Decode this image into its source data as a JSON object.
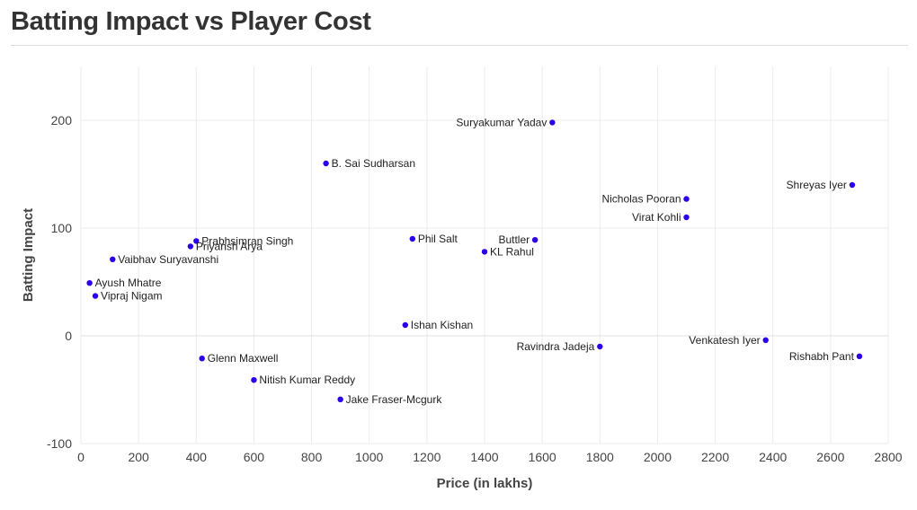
{
  "chart_data": {
    "type": "scatter",
    "title": "Batting Impact vs Player Cost",
    "xlabel": "Price (in lakhs)",
    "ylabel": "Batting Impact",
    "xlim": [
      0,
      2800
    ],
    "ylim": [
      -100,
      250
    ],
    "xticks": [
      0,
      200,
      400,
      600,
      800,
      1000,
      1200,
      1400,
      1600,
      1800,
      2000,
      2200,
      2400,
      2600,
      2800
    ],
    "yticks": [
      -100,
      0,
      100,
      200
    ],
    "grid": true,
    "marker_color": "#2B00E8",
    "points": [
      {
        "label": "Suryakumar Yadav",
        "x": 1635,
        "y": 198,
        "label_side": "left"
      },
      {
        "label": "B. Sai Sudharsan",
        "x": 850,
        "y": 160,
        "label_side": "right"
      },
      {
        "label": "Shreyas Iyer",
        "x": 2675,
        "y": 140,
        "label_side": "left"
      },
      {
        "label": "Nicholas Pooran",
        "x": 2100,
        "y": 127,
        "label_side": "left"
      },
      {
        "label": "Virat Kohli",
        "x": 2100,
        "y": 110,
        "label_side": "left"
      },
      {
        "label": "Phil Salt",
        "x": 1150,
        "y": 90,
        "label_side": "right"
      },
      {
        "label": "Buttler",
        "x": 1575,
        "y": 89,
        "label_side": "left"
      },
      {
        "label": "Prabhsimran Singh",
        "x": 400,
        "y": 88,
        "label_side": "right"
      },
      {
        "label": "Priyansh Arya",
        "x": 380,
        "y": 83,
        "label_side": "right"
      },
      {
        "label": "KL Rahul",
        "x": 1400,
        "y": 78,
        "label_side": "right"
      },
      {
        "label": "Vaibhav Suryavanshi",
        "x": 110,
        "y": 71,
        "label_side": "right"
      },
      {
        "label": "Ayush Mhatre",
        "x": 30,
        "y": 49,
        "label_side": "right"
      },
      {
        "label": "Vipraj Nigam",
        "x": 50,
        "y": 37,
        "label_side": "right"
      },
      {
        "label": "Ishan Kishan",
        "x": 1125,
        "y": 10,
        "label_side": "right"
      },
      {
        "label": "Ravindra Jadeja",
        "x": 1800,
        "y": -10,
        "label_side": "left"
      },
      {
        "label": "Venkatesh Iyer",
        "x": 2375,
        "y": -4,
        "label_side": "left"
      },
      {
        "label": "Rishabh Pant",
        "x": 2700,
        "y": -19,
        "label_side": "left"
      },
      {
        "label": "Glenn Maxwell",
        "x": 420,
        "y": -21,
        "label_side": "right"
      },
      {
        "label": "Nitish Kumar Reddy",
        "x": 600,
        "y": -41,
        "label_side": "right"
      },
      {
        "label": "Jake Fraser-Mcgurk",
        "x": 900,
        "y": -59,
        "label_side": "right"
      }
    ]
  }
}
